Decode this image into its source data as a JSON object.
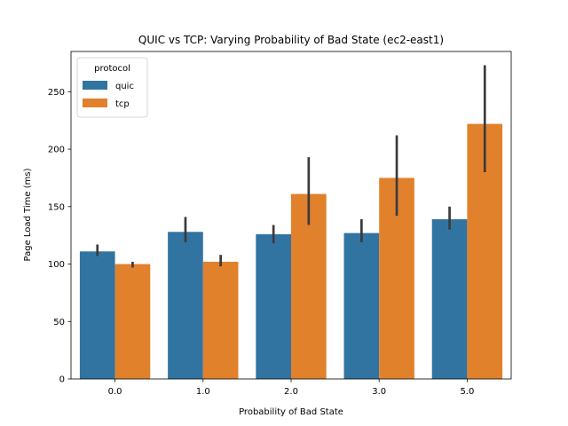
{
  "chart_data": {
    "type": "bar",
    "title": "QUIC vs TCP: Varying Probability of Bad State (ec2-east1)",
    "xlabel": "Probability of Bad State",
    "ylabel": "Page Load Time (ms)",
    "categories": [
      "0.0",
      "1.0",
      "2.0",
      "3.0",
      "5.0"
    ],
    "ylim": [
      0,
      285
    ],
    "yticks": [
      0,
      50,
      100,
      150,
      200,
      250
    ],
    "legend": {
      "title": "protocol",
      "placement": "top-left"
    },
    "grid": false,
    "series": [
      {
        "name": "quic",
        "color": "#3274a1",
        "values": [
          111,
          128,
          126,
          127,
          139
        ],
        "err_low": [
          107,
          119,
          118,
          119,
          130
        ],
        "err_high": [
          117,
          141,
          134,
          139,
          150
        ]
      },
      {
        "name": "tcp",
        "color": "#e1812c",
        "values": [
          100,
          102,
          161,
          175,
          222
        ],
        "err_low": [
          97,
          98,
          134,
          142,
          180
        ],
        "err_high": [
          102,
          108,
          193,
          212,
          273
        ]
      }
    ],
    "error_bar_color": "#3b3b3b"
  }
}
